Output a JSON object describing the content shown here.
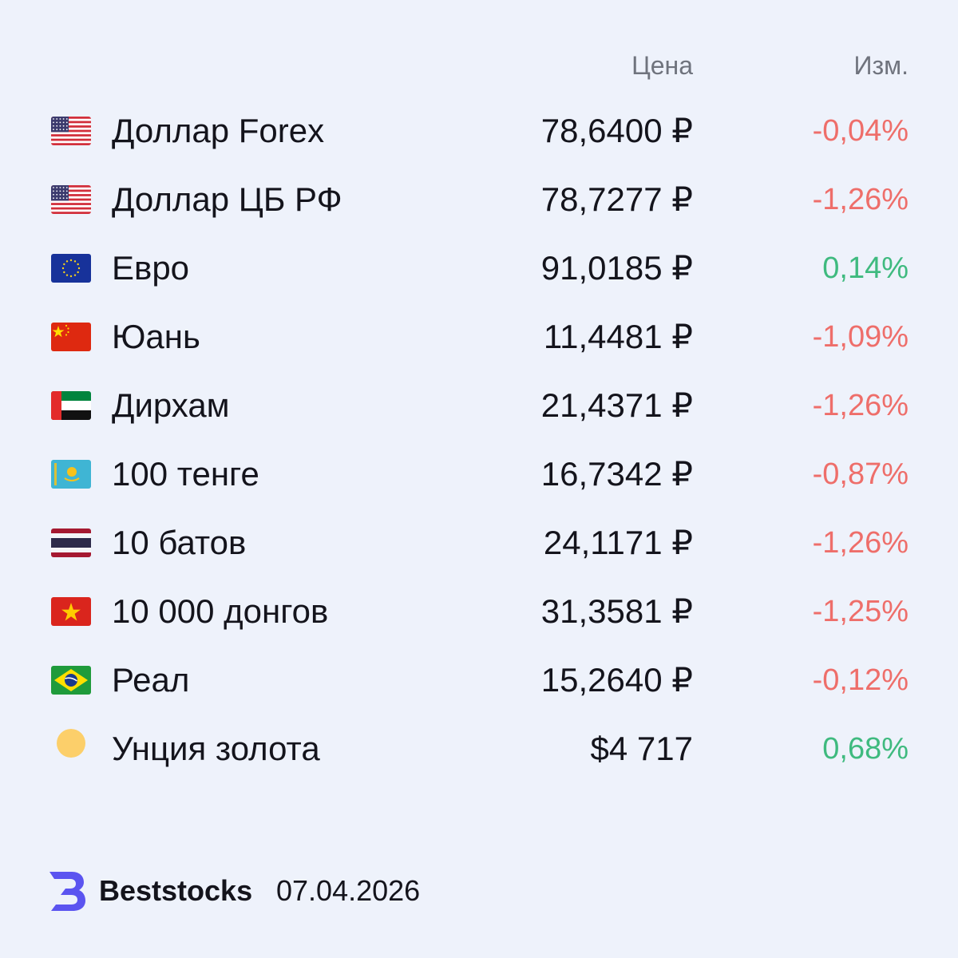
{
  "header": {
    "price_label": "Цена",
    "change_label": "Изм."
  },
  "colors": {
    "background": "#eef2fb",
    "negative": "#ee6e6a",
    "positive": "#3fba7f",
    "text": "#14141c",
    "muted": "#6f737d",
    "brand": "#5b54f0"
  },
  "rates": [
    {
      "icon": "us-flag-icon",
      "name": "Доллар Forex",
      "price": "78,6400 ₽",
      "change": "-0,04%",
      "trend": "negative"
    },
    {
      "icon": "us-flag-icon",
      "name": "Доллар ЦБ РФ",
      "price": "78,7277 ₽",
      "change": "-1,26%",
      "trend": "negative"
    },
    {
      "icon": "eu-flag-icon",
      "name": "Евро",
      "price": "91,0185 ₽",
      "change": "0,14%",
      "trend": "positive"
    },
    {
      "icon": "cn-flag-icon",
      "name": "Юань",
      "price": "11,4481 ₽",
      "change": "-1,09%",
      "trend": "negative"
    },
    {
      "icon": "ae-flag-icon",
      "name": "Дирхам",
      "price": "21,4371 ₽",
      "change": "-1,26%",
      "trend": "negative"
    },
    {
      "icon": "kz-flag-icon",
      "name": "100 тенге",
      "price": "16,7342 ₽",
      "change": "-0,87%",
      "trend": "negative"
    },
    {
      "icon": "th-flag-icon",
      "name": "10 батов",
      "price": "24,1171 ₽",
      "change": "-1,26%",
      "trend": "negative"
    },
    {
      "icon": "vn-flag-icon",
      "name": "10 000 донгов",
      "price": "31,3581 ₽",
      "change": "-1,25%",
      "trend": "negative"
    },
    {
      "icon": "br-flag-icon",
      "name": "Реал",
      "price": "15,2640 ₽",
      "change": "-0,12%",
      "trend": "negative"
    },
    {
      "icon": "gold-coin-icon",
      "name": "Унция золота",
      "price": "$4 717",
      "change": "0,68%",
      "trend": "positive"
    }
  ],
  "footer": {
    "brand": "Beststocks",
    "date": "07.04.2026"
  }
}
